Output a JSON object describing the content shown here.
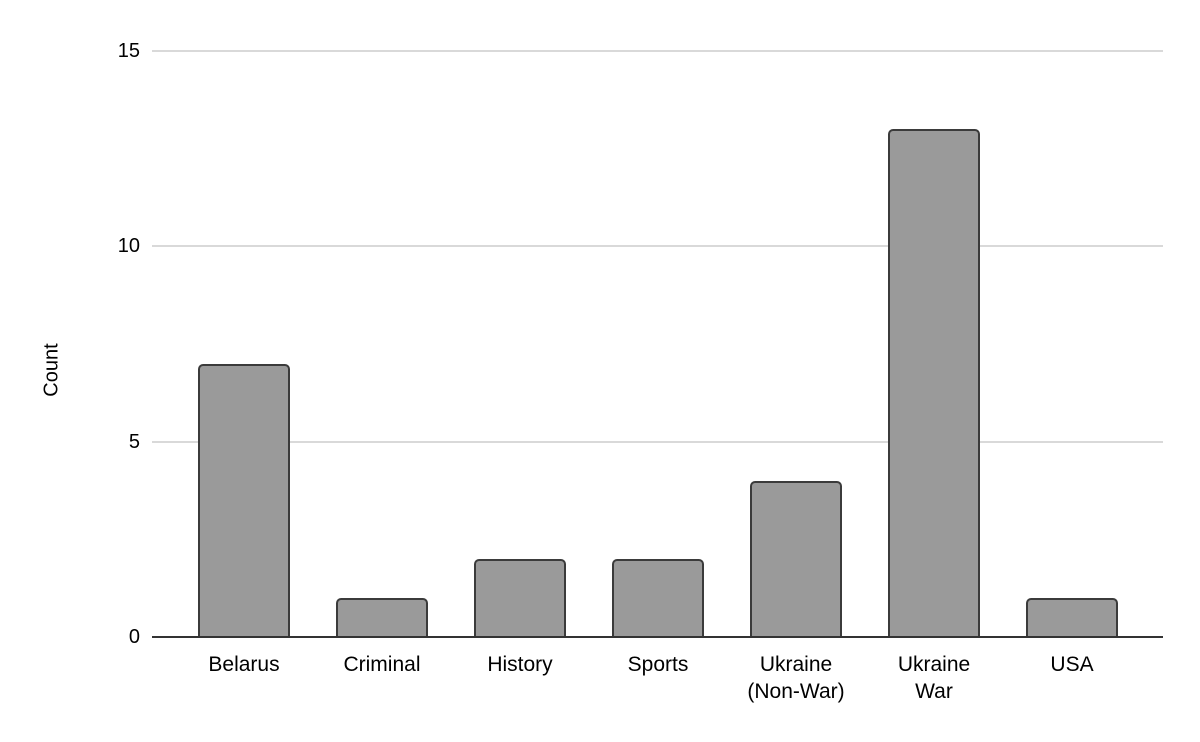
{
  "chart_data": {
    "type": "bar",
    "title": "",
    "categories": [
      "Belarus",
      "Criminal",
      "History",
      "Sports",
      "Ukraine (Non-War)",
      "Ukraine War",
      "USA"
    ],
    "category_lines": [
      [
        "Belarus"
      ],
      [
        "Criminal"
      ],
      [
        "History"
      ],
      [
        "Sports"
      ],
      [
        "Ukraine",
        "(Non-War)"
      ],
      [
        "Ukraine",
        "War"
      ],
      [
        "USA"
      ]
    ],
    "values": [
      7,
      1,
      2,
      2,
      4,
      13,
      1
    ],
    "xlabel": "",
    "ylabel": "Count",
    "ylim": [
      0,
      15
    ],
    "yticks": [
      0,
      5,
      10,
      15
    ],
    "grid": "horizontal",
    "legend_position": "none",
    "bar_fill": "#9a9a9a",
    "bar_border": "#3b3b3b",
    "gridline_color": "#d9d9d9",
    "axis_color": "#333333",
    "text_color": "#000000",
    "background": "#ffffff"
  }
}
